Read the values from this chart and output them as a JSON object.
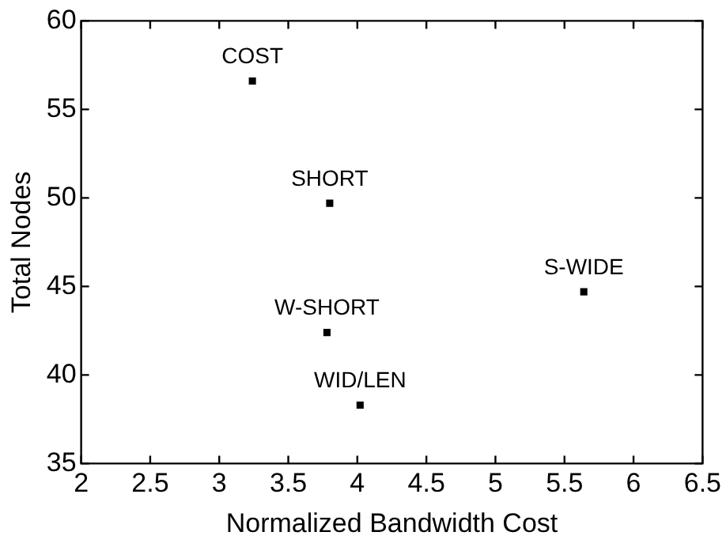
{
  "chart_data": {
    "type": "scatter",
    "xlabel": "Normalized Bandwidth Cost",
    "ylabel": "Total Nodes",
    "x": [
      3.24,
      3.8,
      3.78,
      4.02,
      5.64
    ],
    "values": [
      56.6,
      49.7,
      42.4,
      38.3,
      44.7
    ],
    "color": "#000000",
    "marker": "square",
    "grid": false,
    "legend": false,
    "xlim": [
      2,
      6.5
    ],
    "xticks": [
      2,
      2.5,
      3,
      3.5,
      4,
      4.5,
      5,
      5.5,
      6,
      6.5
    ],
    "ylim": [
      35,
      60
    ],
    "yticks": [
      35,
      40,
      45,
      50,
      55,
      60
    ],
    "annotations": [
      {
        "text": "COST",
        "x": 3.24,
        "y": 56.6
      },
      {
        "text": "SHORT",
        "x": 3.8,
        "y": 49.7
      },
      {
        "text": "W-SHORT",
        "x": 3.78,
        "y": 42.4
      },
      {
        "text": "WID/LEN",
        "x": 4.02,
        "y": 38.3
      },
      {
        "text": "S-WIDE",
        "x": 5.64,
        "y": 44.7
      }
    ]
  }
}
